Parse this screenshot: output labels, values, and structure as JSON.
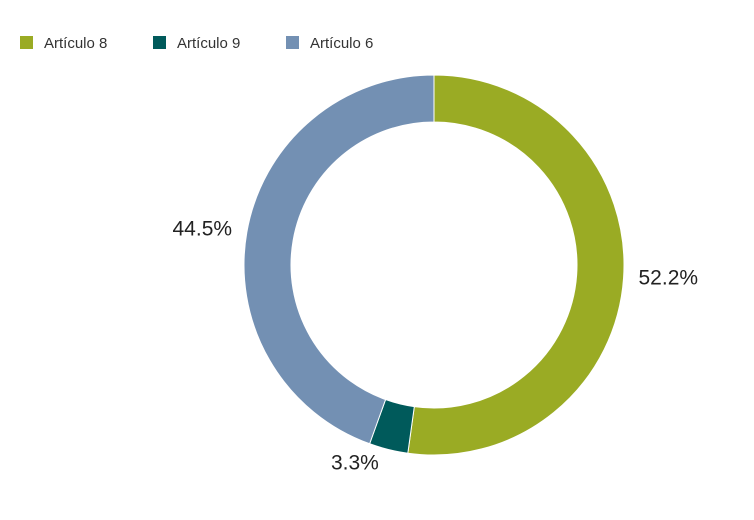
{
  "chart_data": {
    "type": "donut",
    "categories": [
      "Artículo 8",
      "Artículo 9",
      "Artículo 6"
    ],
    "values": [
      52.2,
      3.3,
      44.5
    ],
    "value_labels": [
      "52.2%",
      "3.3%",
      "44.5%"
    ],
    "colors": [
      "#9aab24",
      "#005a5b",
      "#7390b3"
    ],
    "legend": "top-left"
  }
}
